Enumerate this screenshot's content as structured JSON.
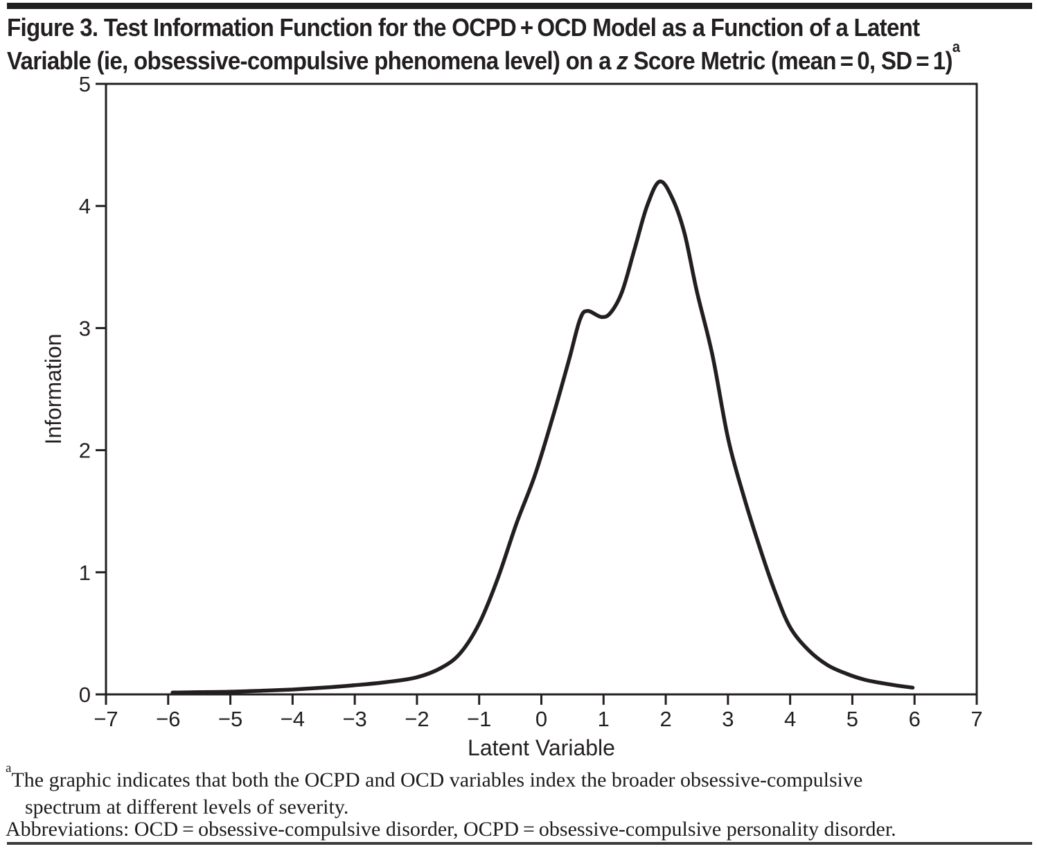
{
  "figure": {
    "title": {
      "line1": "Figure 3. Test Information Function for the OCPD + OCD Model as a Function of a Latent",
      "line2_pre": "Variable (ie, obsessive-compulsive phenomena level) on a ",
      "z_symbol": "z",
      "line2_post": " Score Metric (mean = 0, SD = 1)",
      "footnote_marker": "a"
    },
    "footnote": {
      "marker": "a",
      "line1": "The graphic indicates that both the OCPD and OCD variables index the broader obsessive-compulsive",
      "line2": "spectrum at different levels of severity."
    },
    "abbreviations": "Abbreviations: OCD = obsessive-compulsive disorder, OCPD = obsessive-compulsive personality disorder."
  },
  "colors": {
    "text": "#231f20",
    "axis": "#231f20",
    "curve": "#231f20",
    "rule_top": "#1f1f1f",
    "rule_bottom": "#3a3a3a",
    "background": "#ffffff"
  },
  "chart_data": {
    "type": "line",
    "title": "",
    "xlabel": "Latent Variable",
    "ylabel": "Information",
    "xlim": [
      -7,
      7
    ],
    "ylim": [
      0,
      5
    ],
    "xticks": [
      -7,
      -6,
      -5,
      -4,
      -3,
      -2,
      -1,
      0,
      1,
      2,
      3,
      4,
      5,
      6,
      7
    ],
    "xtick_labels": [
      "−7",
      "−6",
      "−5",
      "−4",
      "−3",
      "−2",
      "−1",
      "0",
      "1",
      "2",
      "3",
      "4",
      "5",
      "6",
      "7"
    ],
    "yticks": [
      0,
      1,
      2,
      3,
      4,
      5
    ],
    "ytick_labels": [
      "0",
      "1",
      "2",
      "3",
      "4",
      "5"
    ],
    "grid": false,
    "frame": "box",
    "legend": "none",
    "line_color": "#231f20",
    "line_width": 5.5,
    "series": [
      {
        "name": "Test information function, OCPD + OCD model",
        "points": [
          [
            -5.93,
            0.015
          ],
          [
            -5.5,
            0.018
          ],
          [
            -5.0,
            0.022
          ],
          [
            -4.5,
            0.03
          ],
          [
            -4.0,
            0.04
          ],
          [
            -3.5,
            0.055
          ],
          [
            -3.0,
            0.075
          ],
          [
            -2.5,
            0.1
          ],
          [
            -2.0,
            0.14
          ],
          [
            -1.6,
            0.22
          ],
          [
            -1.3,
            0.34
          ],
          [
            -1.0,
            0.58
          ],
          [
            -0.7,
            0.95
          ],
          [
            -0.4,
            1.4
          ],
          [
            -0.1,
            1.8
          ],
          [
            0.2,
            2.3
          ],
          [
            0.45,
            2.75
          ],
          [
            0.62,
            3.07
          ],
          [
            0.74,
            3.14
          ],
          [
            0.97,
            3.09
          ],
          [
            1.12,
            3.13
          ],
          [
            1.3,
            3.3
          ],
          [
            1.5,
            3.65
          ],
          [
            1.7,
            4.0
          ],
          [
            1.9,
            4.2
          ],
          [
            2.1,
            4.07
          ],
          [
            2.3,
            3.78
          ],
          [
            2.5,
            3.3
          ],
          [
            2.75,
            2.78
          ],
          [
            3.0,
            2.1
          ],
          [
            3.25,
            1.63
          ],
          [
            3.5,
            1.22
          ],
          [
            3.75,
            0.85
          ],
          [
            4.0,
            0.55
          ],
          [
            4.3,
            0.36
          ],
          [
            4.6,
            0.24
          ],
          [
            4.9,
            0.17
          ],
          [
            5.2,
            0.12
          ],
          [
            5.5,
            0.09
          ],
          [
            5.75,
            0.07
          ],
          [
            5.97,
            0.055
          ]
        ]
      }
    ]
  }
}
